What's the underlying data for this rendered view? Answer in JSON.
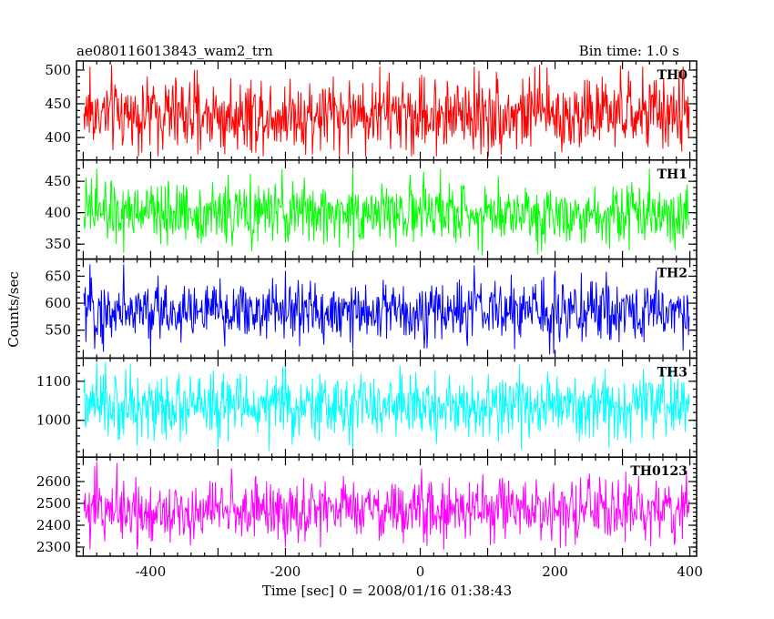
{
  "header": {
    "title": "ae080116013843_wam2_trn",
    "bin_time": "Bin time: 1.0 s"
  },
  "chart_data": {
    "type": "line",
    "xlabel": "Time [sec] 0 = 2008/01/16 01:38:43",
    "ylabel": "Counts/sec",
    "xlim": [
      -510,
      410
    ],
    "x_ticks": [
      -400,
      -200,
      0,
      200,
      400
    ],
    "x_range": [
      -499,
      399
    ],
    "x_step": 1,
    "grid": false,
    "panels": [
      {
        "name": "TH0",
        "color": "#ff0000",
        "ylim": [
          372,
          508
        ],
        "y_ticks": [
          400,
          450,
          500
        ],
        "mean": 435,
        "spread": 28,
        "peaks": [
          [
            -490,
            505
          ],
          [
            -290,
            505
          ],
          [
            -60,
            505
          ],
          [
            80,
            505
          ],
          [
            170,
            505
          ],
          [
            330,
            505
          ],
          [
            390,
            505
          ]
        ],
        "troughs": [
          [
            -330,
            375
          ],
          [
            -290,
            375
          ],
          [
            -160,
            375
          ],
          [
            -10,
            375
          ],
          [
            90,
            375
          ],
          [
            210,
            378
          ]
        ]
      },
      {
        "name": "TH1",
        "color": "#00ff00",
        "ylim": [
          332,
          478
        ],
        "y_ticks": [
          350,
          400,
          450
        ],
        "mean": 400,
        "spread": 24,
        "peaks": [
          [
            -480,
            470
          ],
          [
            -100,
            470
          ],
          [
            30,
            470
          ],
          [
            180,
            470
          ],
          [
            340,
            470
          ]
        ],
        "troughs": [
          [
            -440,
            336
          ],
          [
            -250,
            338
          ],
          [
            -120,
            345
          ],
          [
            180,
            338
          ],
          [
            310,
            340
          ]
        ]
      },
      {
        "name": "TH2",
        "color": "#0000ff",
        "ylim": [
          505,
          675
        ],
        "y_ticks": [
          550,
          600,
          650
        ],
        "mean": 585,
        "spread": 28,
        "peaks": [
          [
            -490,
            672
          ],
          [
            -440,
            672
          ],
          [
            -400,
            665
          ],
          [
            -200,
            660
          ],
          [
            80,
            670
          ],
          [
            200,
            660
          ],
          [
            350,
            660
          ]
        ],
        "troughs": [
          [
            -470,
            510
          ],
          [
            -400,
            510
          ],
          [
            -290,
            520
          ],
          [
            -100,
            515
          ],
          [
            140,
            515
          ],
          [
            390,
            512
          ]
        ]
      },
      {
        "name": "TH3",
        "color": "#00ffff",
        "ylim": [
          915,
          1150
        ],
        "y_ticks": [
          1000,
          1100
        ],
        "mean": 1035,
        "spread": 40,
        "peaks": [
          [
            -480,
            1148
          ],
          [
            -430,
            1145
          ],
          [
            -200,
            1148
          ],
          [
            -30,
            1140
          ],
          [
            360,
            1130
          ]
        ],
        "troughs": [
          [
            -420,
            935
          ],
          [
            -300,
            930
          ],
          [
            -100,
            925
          ],
          [
            150,
            925
          ],
          [
            280,
            930
          ]
        ]
      },
      {
        "name": "TH0123",
        "color": "#ff00ff",
        "ylim": [
          2275,
          2695
        ],
        "y_ticks": [
          2300,
          2400,
          2500,
          2600
        ],
        "mean": 2470,
        "spread": 70,
        "peaks": [
          [
            -480,
            2690
          ],
          [
            -450,
            2685
          ],
          [
            -280,
            2660
          ],
          [
            -200,
            2600
          ],
          [
            395,
            2650
          ]
        ],
        "troughs": [
          [
            -490,
            2290
          ],
          [
            -420,
            2290
          ],
          [
            -200,
            2300
          ],
          [
            10,
            2305
          ],
          [
            230,
            2310
          ]
        ]
      }
    ]
  }
}
